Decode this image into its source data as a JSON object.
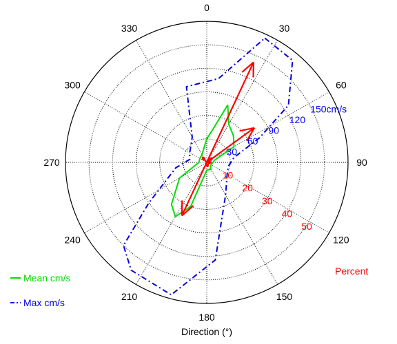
{
  "chart_data": {
    "type": "polar",
    "xlabel": "Direction (°)",
    "angle_ticks": [
      "0",
      "30",
      "60",
      "90",
      "120",
      "150",
      "180",
      "210",
      "240",
      "270",
      "300",
      "330"
    ],
    "velocity_ticks": {
      "labels": [
        "30",
        "60",
        "90",
        "120",
        "150cm/s"
      ],
      "values": [
        30,
        60,
        90,
        120,
        150
      ],
      "color": "#0000ff",
      "max": 180
    },
    "percent_ticks": {
      "labels": [
        "10",
        "20",
        "30",
        "40",
        "50"
      ],
      "values": [
        10,
        20,
        30,
        40,
        50
      ],
      "color": "#ff0000",
      "max": 60,
      "title": "Percent"
    },
    "series": [
      {
        "name": "Mean cm/s",
        "color": "#00dd00",
        "style": "solid",
        "points": [
          [
            20,
            78
          ],
          [
            30,
            56
          ],
          [
            45,
            48
          ],
          [
            60,
            40
          ],
          [
            75,
            10
          ],
          [
            90,
            8
          ],
          [
            120,
            6
          ],
          [
            150,
            10
          ],
          [
            180,
            10
          ],
          [
            200,
            60
          ],
          [
            210,
            80
          ],
          [
            220,
            70
          ],
          [
            240,
            40
          ],
          [
            270,
            10
          ],
          [
            300,
            10
          ],
          [
            330,
            12
          ],
          [
            0,
            30
          ],
          [
            10,
            42
          ],
          [
            20,
            78
          ]
        ]
      },
      {
        "name": "Max cm/s",
        "color": "#0000dd",
        "style": "dashdot",
        "points": [
          [
            25,
            175
          ],
          [
            40,
            170
          ],
          [
            55,
            127
          ],
          [
            65,
            74
          ],
          [
            80,
            35
          ],
          [
            100,
            28
          ],
          [
            120,
            30
          ],
          [
            150,
            48
          ],
          [
            175,
            125
          ],
          [
            195,
            175
          ],
          [
            215,
            168
          ],
          [
            225,
            150
          ],
          [
            235,
            90
          ],
          [
            260,
            40
          ],
          [
            280,
            22
          ],
          [
            300,
            25
          ],
          [
            330,
            37
          ],
          [
            345,
            100
          ],
          [
            8,
            108
          ],
          [
            25,
            175
          ]
        ]
      }
    ],
    "arrows": {
      "color": "#ff0000",
      "items": [
        {
          "direction": 25,
          "percent": 47
        },
        {
          "direction": 54,
          "percent": 25
        },
        {
          "direction": 205,
          "percent": 25
        },
        {
          "direction": 50,
          "percent": 3
        },
        {
          "direction": 90,
          "percent": 2
        },
        {
          "direction": 320,
          "percent": 3
        },
        {
          "direction": 170,
          "percent": 2
        }
      ]
    },
    "grid": true,
    "legend_position": "bottom-left"
  }
}
